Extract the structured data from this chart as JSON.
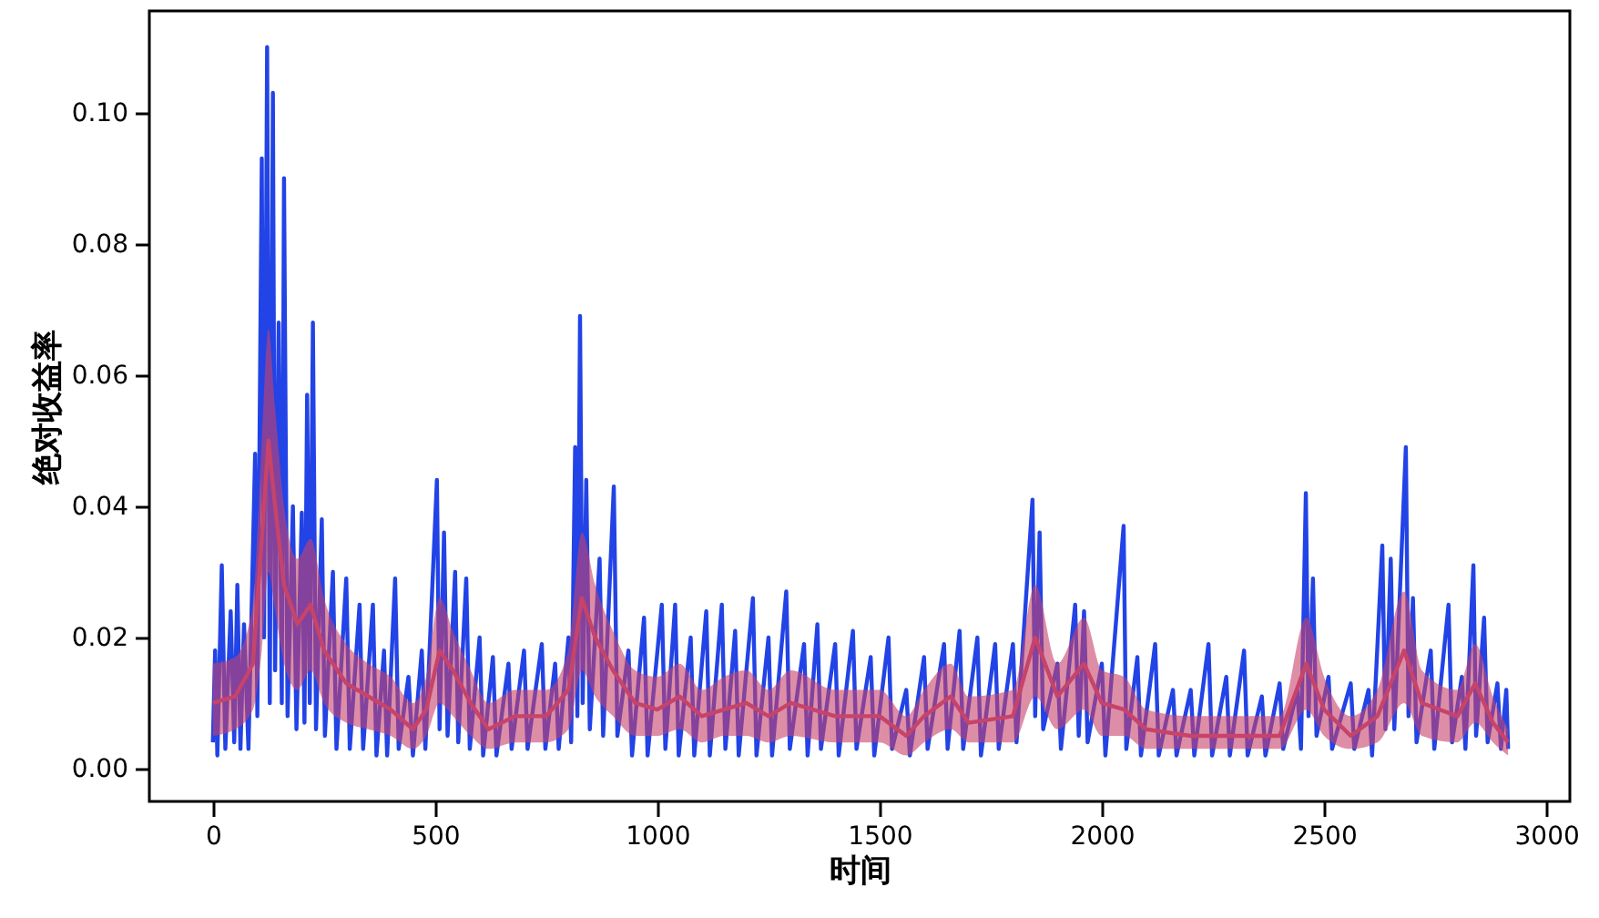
{
  "chart_data": {
    "type": "line",
    "xlabel": "时间",
    "ylabel": "绝对收益率",
    "xlim": [
      -143,
      3053
    ],
    "xticks": [
      0,
      500,
      1000,
      1500,
      2000,
      2500,
      3000
    ],
    "ylim": [
      -0.005,
      0.1155
    ],
    "yticks": [
      {
        "value": 0,
        "label": "0.00"
      },
      0.02,
      0.04,
      0.06,
      0.08,
      {
        "value": 0.1,
        "label": "0.10"
      }
    ],
    "grid": false,
    "line_style": "solid",
    "marker": "none",
    "series": [
      {
        "color": "#2243e6",
        "x": [
          0,
          5,
          10,
          20,
          28,
          40,
          48,
          55,
          62,
          70,
          80,
          95,
          100,
          110,
          115,
          122,
          128,
          135,
          140,
          148,
          155,
          160,
          168,
          180,
          188,
          200,
          206,
          212,
          218,
          225,
          232,
          245,
          252,
          270,
          278,
          300,
          308,
          330,
          338,
          360,
          368,
          385,
          392,
          410,
          418,
          440,
          450,
          470,
          478,
          504,
          510,
          520,
          528,
          545,
          552,
          570,
          578,
          600,
          608,
          630,
          638,
          665,
          672,
          700,
          708,
          740,
          748,
          770,
          778,
          800,
          806,
          815,
          820,
          826,
          832,
          840,
          848,
          870,
          878,
          902,
          910,
          935,
          943,
          970,
          978,
          1010,
          1018,
          1040,
          1048,
          1075,
          1083,
          1110,
          1118,
          1145,
          1153,
          1175,
          1183,
          1215,
          1223,
          1250,
          1258,
          1290,
          1298,
          1330,
          1338,
          1360,
          1368,
          1400,
          1408,
          1440,
          1448,
          1480,
          1488,
          1520,
          1528,
          1560,
          1568,
          1600,
          1608,
          1645,
          1653,
          1680,
          1688,
          1720,
          1728,
          1760,
          1768,
          1800,
          1808,
          1844,
          1850,
          1860,
          1868,
          1900,
          1908,
          1940,
          1948,
          1960,
          1968,
          2000,
          2008,
          2049,
          2055,
          2080,
          2088,
          2120,
          2128,
          2160,
          2168,
          2200,
          2208,
          2240,
          2248,
          2280,
          2288,
          2320,
          2328,
          2360,
          2368,
          2400,
          2408,
          2440,
          2448,
          2459,
          2465,
          2475,
          2483,
          2510,
          2518,
          2560,
          2568,
          2600,
          2608,
          2631,
          2638,
          2650,
          2658,
          2684,
          2690,
          2700,
          2708,
          2740,
          2748,
          2780,
          2788,
          2810,
          2818,
          2836,
          2842,
          2860,
          2868,
          2890,
          2898,
          2910,
          2914
        ],
        "values": [
          0.004,
          0.018,
          0.002,
          0.031,
          0.003,
          0.024,
          0.004,
          0.028,
          0.003,
          0.022,
          0.003,
          0.048,
          0.008,
          0.093,
          0.02,
          0.11,
          0.01,
          0.103,
          0.015,
          0.068,
          0.01,
          0.09,
          0.008,
          0.04,
          0.006,
          0.039,
          0.007,
          0.057,
          0.01,
          0.068,
          0.006,
          0.038,
          0.005,
          0.03,
          0.003,
          0.029,
          0.003,
          0.025,
          0.003,
          0.025,
          0.002,
          0.018,
          0.002,
          0.029,
          0.003,
          0.014,
          0.002,
          0.018,
          0.003,
          0.044,
          0.006,
          0.036,
          0.005,
          0.03,
          0.004,
          0.029,
          0.003,
          0.02,
          0.002,
          0.017,
          0.002,
          0.016,
          0.003,
          0.018,
          0.003,
          0.019,
          0.003,
          0.016,
          0.003,
          0.02,
          0.004,
          0.049,
          0.008,
          0.069,
          0.01,
          0.044,
          0.006,
          0.032,
          0.005,
          0.043,
          0.005,
          0.018,
          0.002,
          0.023,
          0.002,
          0.025,
          0.003,
          0.025,
          0.002,
          0.02,
          0.002,
          0.024,
          0.002,
          0.025,
          0.003,
          0.021,
          0.002,
          0.026,
          0.002,
          0.02,
          0.002,
          0.027,
          0.003,
          0.019,
          0.002,
          0.022,
          0.003,
          0.019,
          0.002,
          0.021,
          0.003,
          0.017,
          0.002,
          0.02,
          0.003,
          0.012,
          0.002,
          0.017,
          0.003,
          0.019,
          0.003,
          0.021,
          0.003,
          0.02,
          0.002,
          0.019,
          0.003,
          0.019,
          0.004,
          0.041,
          0.008,
          0.036,
          0.006,
          0.016,
          0.003,
          0.025,
          0.005,
          0.024,
          0.004,
          0.016,
          0.002,
          0.037,
          0.003,
          0.017,
          0.002,
          0.019,
          0.002,
          0.012,
          0.002,
          0.012,
          0.002,
          0.019,
          0.002,
          0.014,
          0.002,
          0.018,
          0.002,
          0.011,
          0.002,
          0.013,
          0.003,
          0.012,
          0.003,
          0.042,
          0.008,
          0.029,
          0.005,
          0.014,
          0.003,
          0.013,
          0.003,
          0.012,
          0.002,
          0.034,
          0.006,
          0.032,
          0.006,
          0.049,
          0.008,
          0.026,
          0.004,
          0.018,
          0.003,
          0.025,
          0.004,
          0.014,
          0.003,
          0.031,
          0.005,
          0.023,
          0.004,
          0.013,
          0.003,
          0.012,
          0.003
        ]
      },
      {
        "color": "#c6436a",
        "x": [
          0,
          50,
          90,
          110,
          125,
          140,
          160,
          190,
          220,
          250,
          300,
          350,
          400,
          450,
          480,
          510,
          540,
          580,
          620,
          680,
          750,
          800,
          830,
          860,
          900,
          950,
          1000,
          1050,
          1100,
          1150,
          1200,
          1250,
          1300,
          1400,
          1500,
          1560,
          1600,
          1660,
          1700,
          1800,
          1850,
          1900,
          1960,
          2000,
          2050,
          2100,
          2200,
          2300,
          2400,
          2460,
          2500,
          2560,
          2620,
          2680,
          2720,
          2800,
          2840,
          2880,
          2914
        ],
        "values": [
          0.01,
          0.011,
          0.016,
          0.035,
          0.05,
          0.04,
          0.028,
          0.022,
          0.025,
          0.018,
          0.013,
          0.011,
          0.009,
          0.006,
          0.009,
          0.018,
          0.015,
          0.01,
          0.006,
          0.008,
          0.008,
          0.012,
          0.026,
          0.02,
          0.015,
          0.01,
          0.009,
          0.011,
          0.008,
          0.009,
          0.01,
          0.008,
          0.01,
          0.008,
          0.008,
          0.005,
          0.008,
          0.011,
          0.007,
          0.008,
          0.02,
          0.011,
          0.016,
          0.01,
          0.009,
          0.006,
          0.005,
          0.005,
          0.005,
          0.016,
          0.009,
          0.005,
          0.008,
          0.018,
          0.01,
          0.008,
          0.013,
          0.007,
          0.004
        ],
        "lower": [
          0.005,
          0.006,
          0.009,
          0.018,
          0.03,
          0.024,
          0.016,
          0.012,
          0.015,
          0.01,
          0.007,
          0.006,
          0.005,
          0.003,
          0.005,
          0.01,
          0.008,
          0.005,
          0.003,
          0.004,
          0.004,
          0.006,
          0.015,
          0.011,
          0.008,
          0.005,
          0.005,
          0.006,
          0.004,
          0.005,
          0.005,
          0.004,
          0.005,
          0.004,
          0.004,
          0.002,
          0.004,
          0.006,
          0.004,
          0.004,
          0.011,
          0.006,
          0.009,
          0.005,
          0.005,
          0.003,
          0.003,
          0.003,
          0.003,
          0.009,
          0.005,
          0.003,
          0.004,
          0.01,
          0.005,
          0.004,
          0.007,
          0.004,
          0.002
        ],
        "upper": [
          0.016,
          0.017,
          0.025,
          0.05,
          0.067,
          0.055,
          0.04,
          0.032,
          0.035,
          0.026,
          0.019,
          0.016,
          0.014,
          0.01,
          0.014,
          0.026,
          0.021,
          0.015,
          0.01,
          0.012,
          0.012,
          0.018,
          0.036,
          0.028,
          0.021,
          0.015,
          0.014,
          0.016,
          0.012,
          0.014,
          0.015,
          0.012,
          0.015,
          0.012,
          0.012,
          0.008,
          0.012,
          0.016,
          0.011,
          0.012,
          0.028,
          0.016,
          0.023,
          0.015,
          0.014,
          0.009,
          0.008,
          0.008,
          0.008,
          0.023,
          0.014,
          0.008,
          0.012,
          0.027,
          0.015,
          0.012,
          0.019,
          0.011,
          0.006
        ]
      }
    ]
  }
}
